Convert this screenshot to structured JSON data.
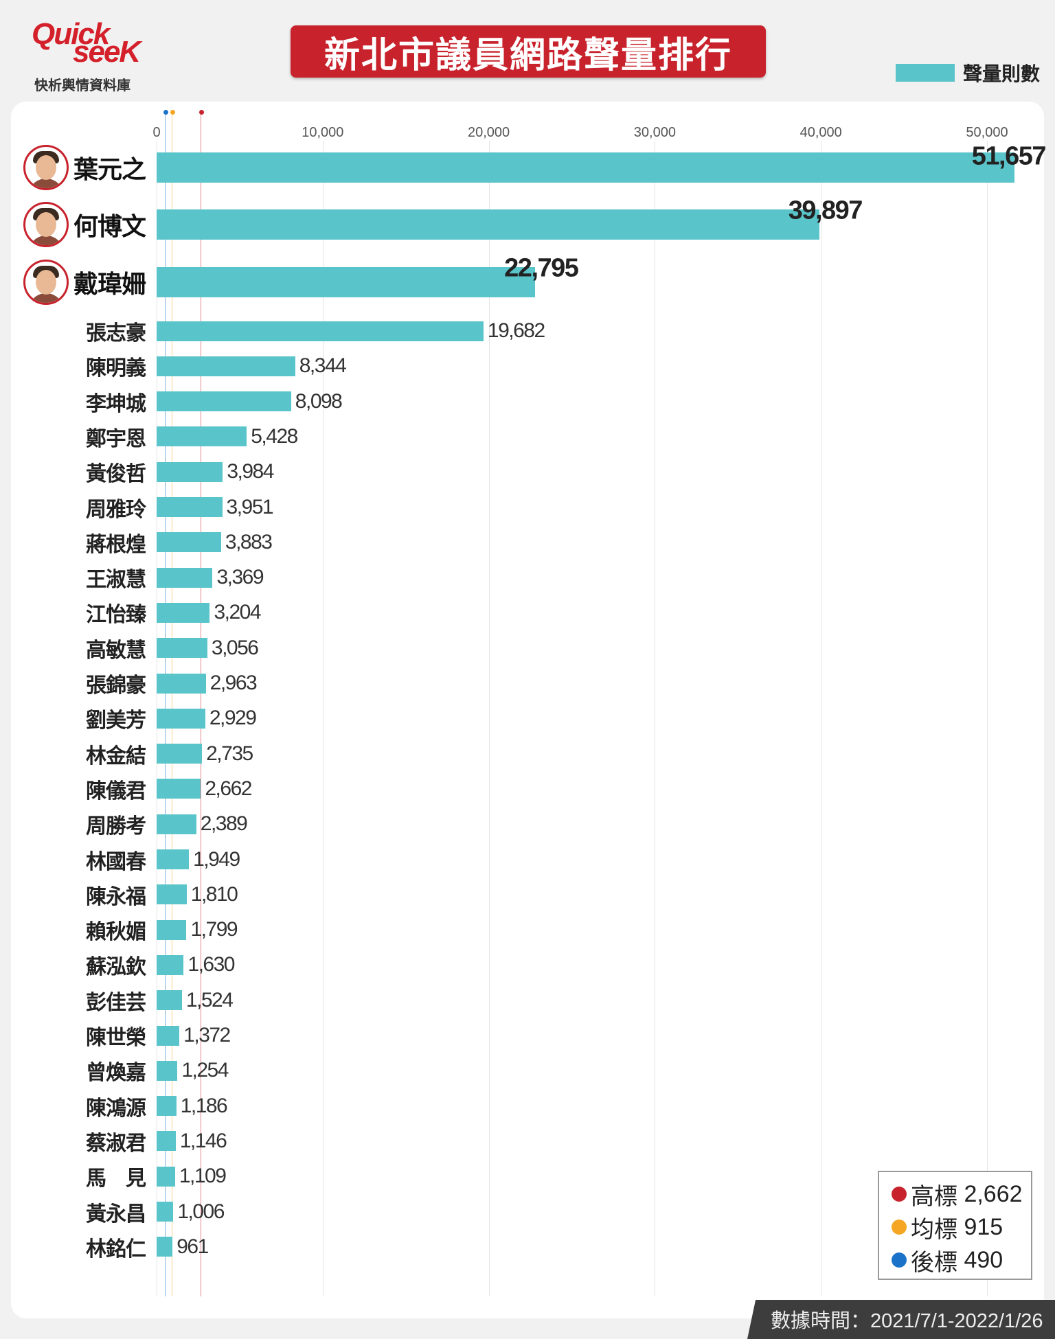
{
  "logo": {
    "word_a": "Quick",
    "word_b": "seeK",
    "subtitle": "快析輿情資料庫"
  },
  "title": "新北市議員網路聲量排行",
  "footer": "數據時間：2021/7/1-2022/1/26",
  "colors": {
    "bar": "#5ac4cb",
    "title_bg": "#c8232c",
    "high": "#c8232c",
    "mean": "#f5a623",
    "low": "#1a73c8"
  },
  "chart_data": {
    "type": "bar",
    "orientation": "horizontal",
    "title": "新北市議員網路聲量排行",
    "legend": {
      "series": "聲量則數",
      "placement": "top-right"
    },
    "xlim": [
      0,
      52000
    ],
    "ticks": [
      0,
      10000,
      20000,
      30000,
      40000,
      50000
    ],
    "tick_labels": [
      "0",
      "10,000",
      "20,000",
      "30,000",
      "40,000",
      "50,000"
    ],
    "grid": true,
    "categories": [
      "葉元之",
      "何博文",
      "戴瑋姍",
      "張志豪",
      "陳明義",
      "李坤城",
      "鄭宇恩",
      "黃俊哲",
      "周雅玲",
      "蔣根煌",
      "王淑慧",
      "江怡臻",
      "高敏慧",
      "張錦豪",
      "劉美芳",
      "林金結",
      "陳儀君",
      "周勝考",
      "林國春",
      "陳永福",
      "賴秋媚",
      "蘇泓欽",
      "彭佳芸",
      "陳世榮",
      "曾煥嘉",
      "陳鴻源",
      "蔡淑君",
      "馬　見",
      "黃永昌",
      "林銘仁"
    ],
    "values": [
      51657,
      39897,
      22795,
      19682,
      8344,
      8098,
      5428,
      3984,
      3951,
      3883,
      3369,
      3204,
      3056,
      2963,
      2929,
      2735,
      2662,
      2389,
      1949,
      1810,
      1799,
      1630,
      1524,
      1372,
      1254,
      1186,
      1146,
      1109,
      1006,
      961
    ],
    "value_labels": [
      "51,657",
      "39,897",
      "22,795",
      "19,682",
      "8,344",
      "8,098",
      "5,428",
      "3,984",
      "3,951",
      "3,883",
      "3,369",
      "3,204",
      "3,056",
      "2,963",
      "2,929",
      "2,735",
      "2,662",
      "2,389",
      "1,949",
      "1,810",
      "1,799",
      "1,630",
      "1,524",
      "1,372",
      "1,254",
      "1,186",
      "1,146",
      "1,109",
      "1,006",
      "961"
    ],
    "featured_with_photo": 3,
    "thresholds": [
      {
        "name": "高標",
        "value": 2662,
        "label": "2,662",
        "color": "#c8232c"
      },
      {
        "name": "均標",
        "value": 915,
        "label": "915",
        "color": "#f5a623"
      },
      {
        "name": "後標",
        "value": 490,
        "label": "490",
        "color": "#1a73c8"
      }
    ]
  }
}
